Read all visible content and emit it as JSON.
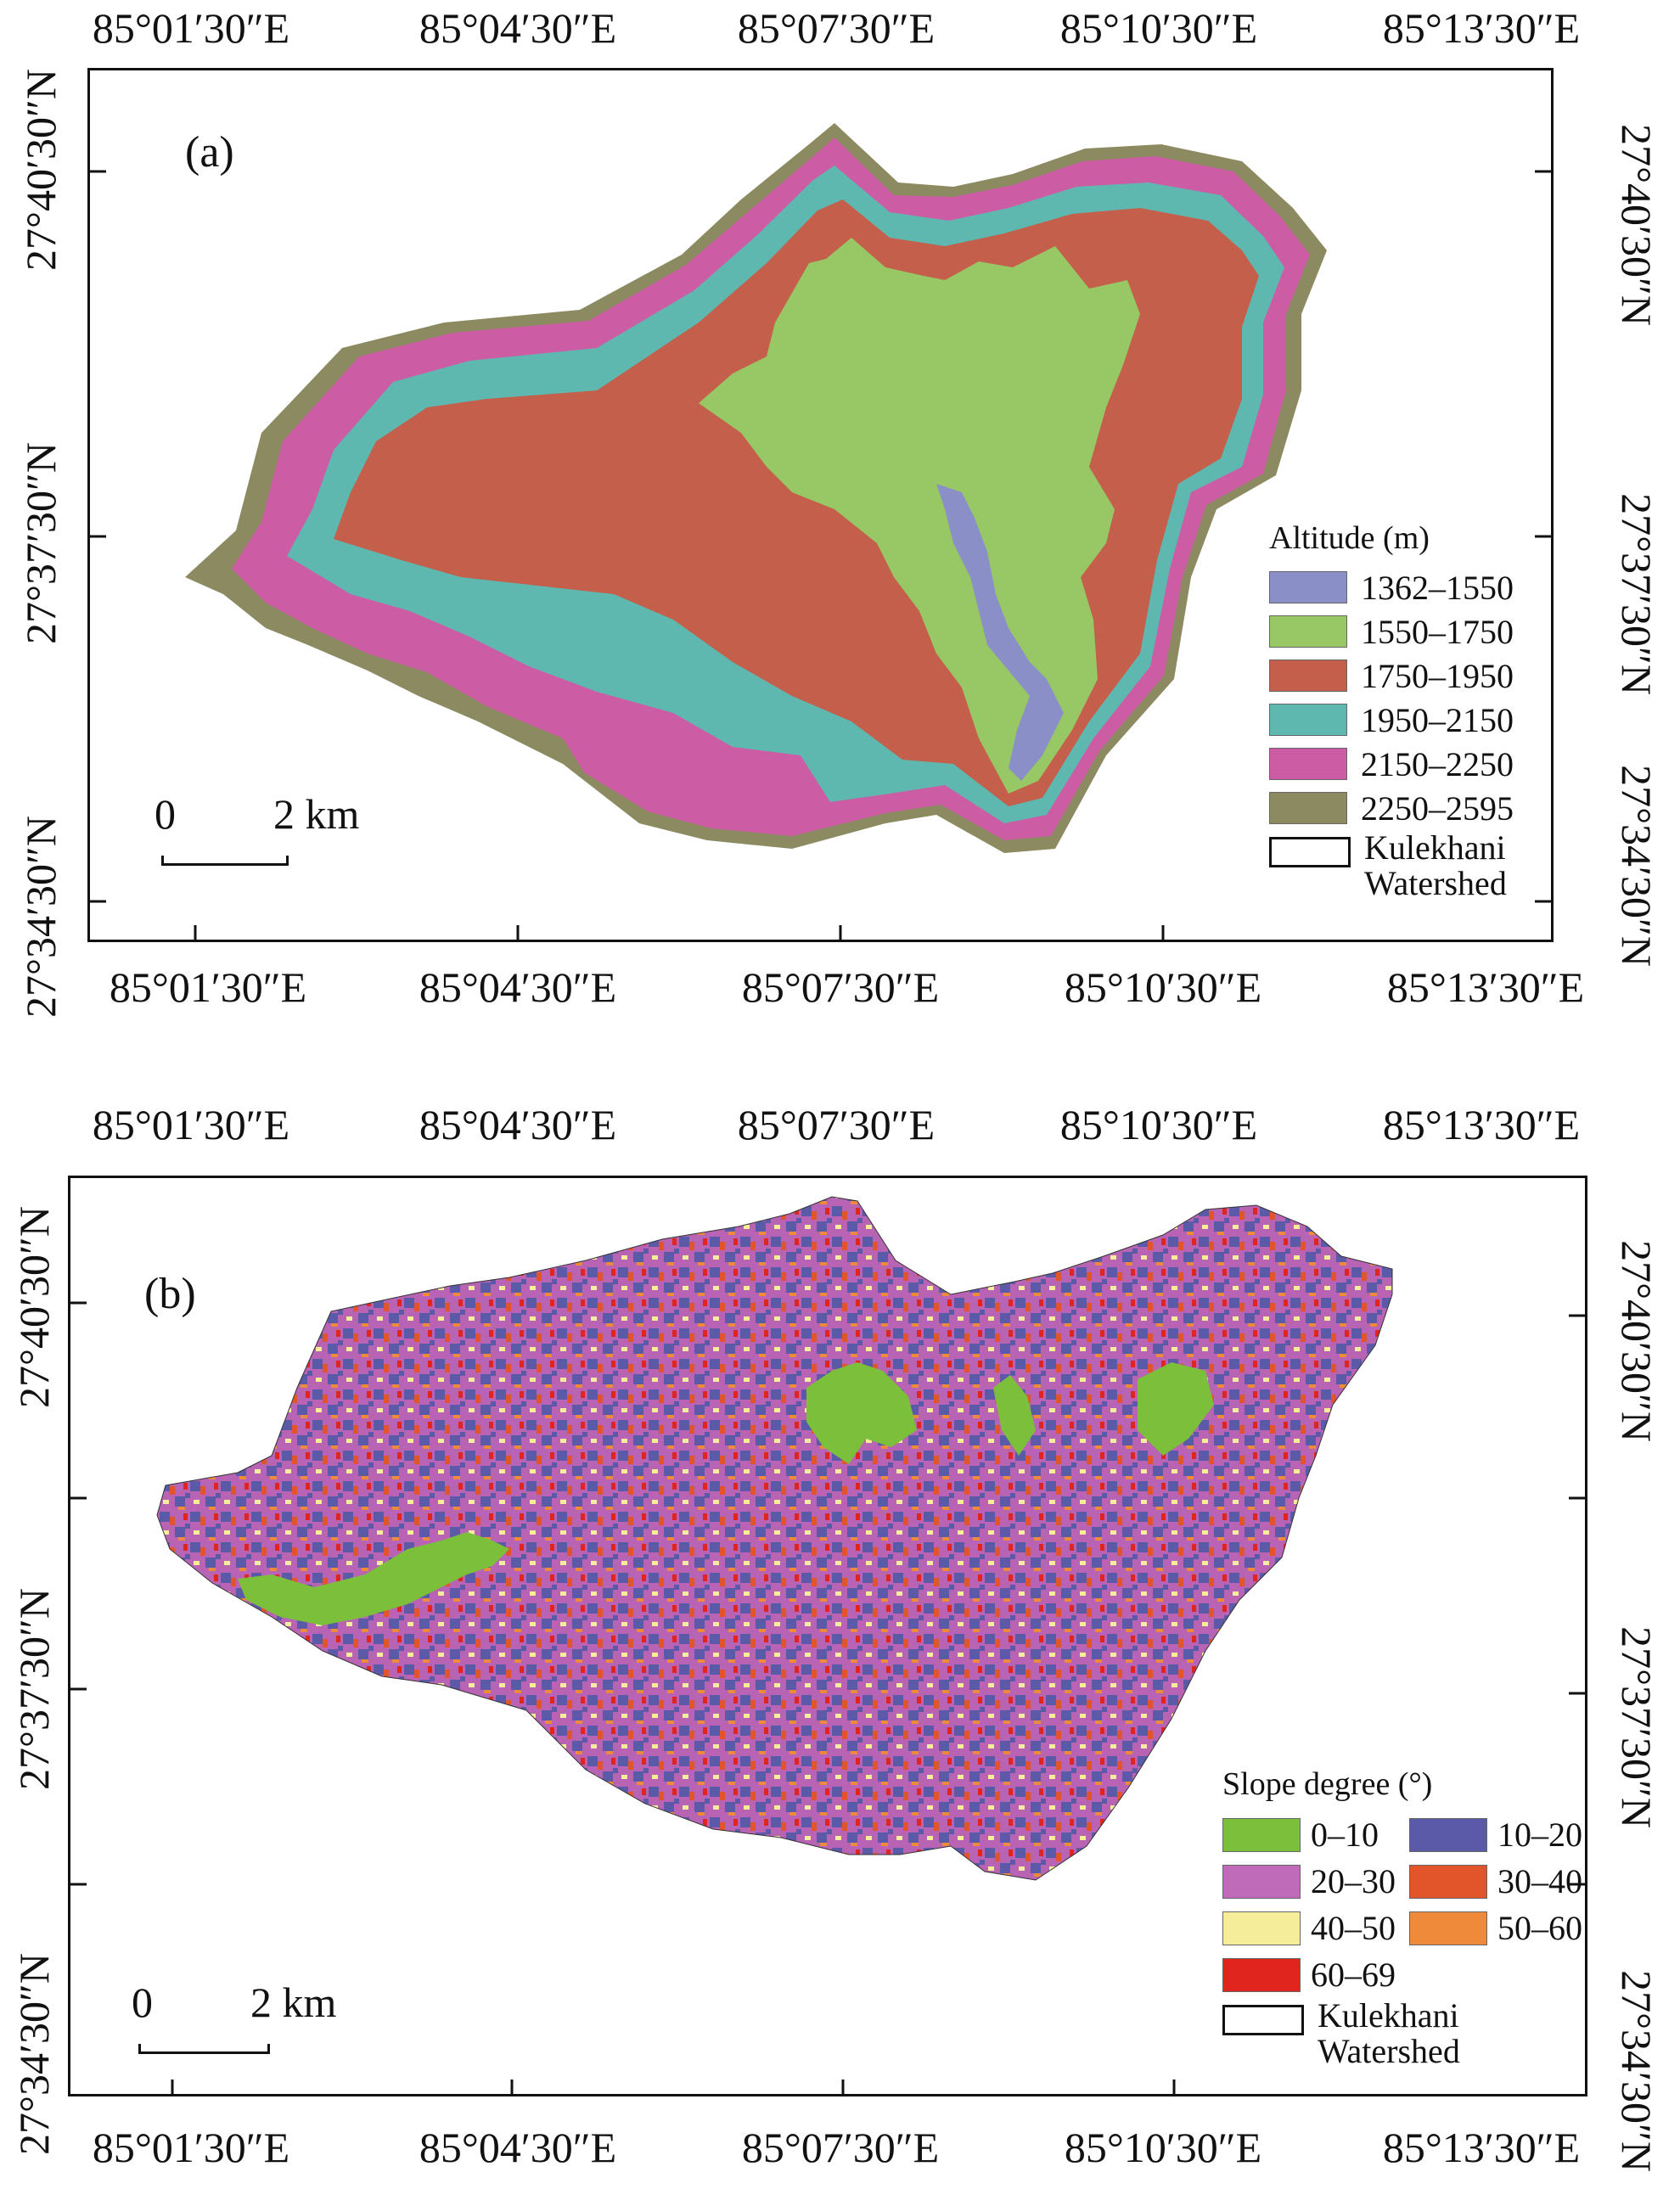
{
  "panel_a": {
    "label": "(a)",
    "top_ticks": [
      "85°01′30″E",
      "85°04′30″E",
      "85°07′30″E",
      "85°10′30″E",
      "85°13′30″E"
    ],
    "bottom_ticks": [
      "85°01′30″E",
      "85°04′30″E",
      "85°07′30″E",
      "85°10′30″E",
      "85°13′30″E"
    ],
    "left_ticks": [
      "27°40′30″N",
      "27°37′30″N",
      "27°34′30″N"
    ],
    "right_ticks": [
      "27°40′30″N",
      "27°37′30″N",
      "27°34′30″N"
    ],
    "legend": {
      "title": "Altitude (m)",
      "items": [
        {
          "label": "1362–1550",
          "color": "#8a8fc8"
        },
        {
          "label": "1550–1750",
          "color": "#98c865"
        },
        {
          "label": "1750–1950",
          "color": "#c45f4c"
        },
        {
          "label": "1950–2150",
          "color": "#5fb8b0"
        },
        {
          "label": "2150–2250",
          "color": "#cc5ca4"
        },
        {
          "label": "2250–2595",
          "color": "#8b8a60"
        }
      ],
      "watershed_line1": "Kulekhani",
      "watershed_line2": "Watershed"
    },
    "scale": {
      "zero": "0",
      "distance": "2 km"
    }
  },
  "panel_b": {
    "label": "(b)",
    "top_ticks": [
      "85°01′30″E",
      "85°04′30″E",
      "85°07′30″E",
      "85°10′30″E",
      "85°13′30″E"
    ],
    "bottom_ticks": [
      "85°01′30″E",
      "85°04′30″E",
      "85°07′30″E",
      "85°10′30″E",
      "85°13′30″E"
    ],
    "left_ticks": [
      "27°40′30″N",
      "27°37′30″N",
      "27°34′30″N"
    ],
    "right_ticks": [
      "27°40′30″N",
      "27°37′30″N",
      "27°34′30″N"
    ],
    "legend": {
      "title": "Slope degree (°)",
      "items": [
        {
          "label": "0–10",
          "color": "#7cbf3a"
        },
        {
          "label": "10–20",
          "color": "#5a5aa8"
        },
        {
          "label": "20–30",
          "color": "#c06aba"
        },
        {
          "label": "30–40",
          "color": "#e2542a"
        },
        {
          "label": "40–50",
          "color": "#f5ed9a"
        },
        {
          "label": "50–60",
          "color": "#ee8a3a"
        },
        {
          "label": "60–69",
          "color": "#e0241e"
        }
      ],
      "watershed_line1": "Kulekhani",
      "watershed_line2": "Watershed"
    },
    "scale": {
      "zero": "0",
      "distance": "2 km"
    }
  }
}
